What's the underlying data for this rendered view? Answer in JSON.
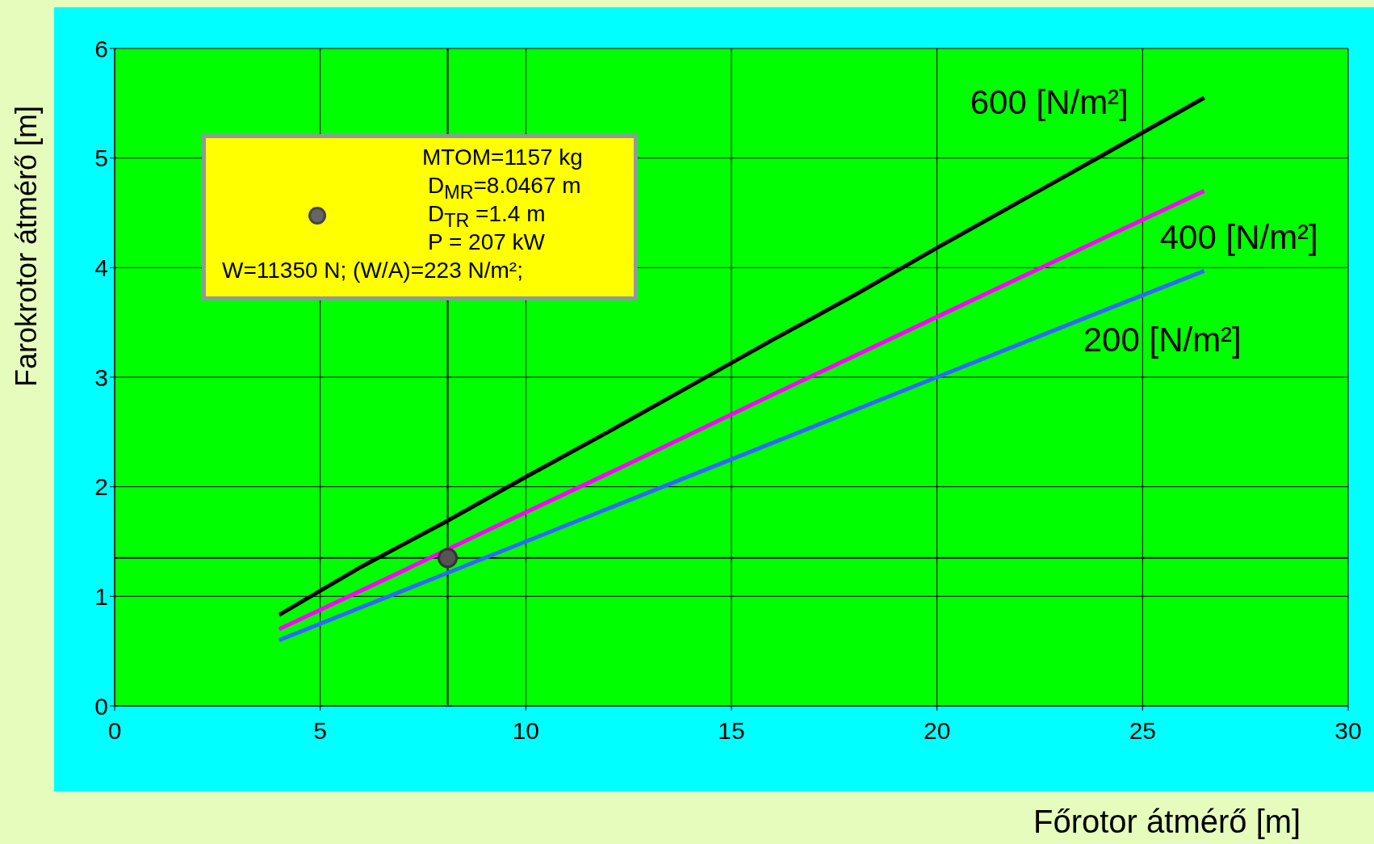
{
  "chart_data": {
    "type": "line",
    "xlabel": "Főrotor átmérő [m]",
    "ylabel": "Farokrotor átmérő [m]",
    "xlim": [
      0,
      30
    ],
    "xticks": [
      0,
      5,
      10,
      15,
      20,
      25,
      30
    ],
    "ylim": [
      0,
      6
    ],
    "yticks": [
      0,
      1,
      2,
      3,
      4,
      5,
      6
    ],
    "grid": true,
    "legend": false,
    "marker": "none",
    "series": [
      {
        "name": "600  [N/m²]",
        "color": "#000000",
        "x": [
          4,
          6,
          8,
          10,
          12,
          14,
          16,
          18,
          20,
          22,
          24,
          26.5
        ],
        "values": [
          0.83,
          1.27,
          1.67,
          2.09,
          2.5,
          2.92,
          3.34,
          3.75,
          4.18,
          4.6,
          5.02,
          5.55
        ]
      },
      {
        "name": "400   [N/m²]",
        "color": "#ff00ff",
        "x": [
          4,
          7,
          9,
          12,
          16,
          20,
          24,
          26.5
        ],
        "values": [
          0.7,
          1.23,
          1.59,
          2.12,
          2.84,
          3.55,
          4.26,
          4.7
        ]
      },
      {
        "name": "200  [N/m²]",
        "color": "#3366ff",
        "x": [
          4,
          8,
          12,
          16,
          20,
          24,
          26.5
        ],
        "values": [
          0.6,
          1.2,
          1.8,
          2.4,
          3.0,
          3.6,
          3.97
        ]
      },
      {
        "type": "scatter",
        "marker": "circle",
        "color": "#555555",
        "x": [
          8.1
        ],
        "values": [
          1.35
        ]
      }
    ],
    "ref_lines": [
      {
        "axis": "x",
        "value": 8.1,
        "color": "#000000"
      },
      {
        "axis": "y",
        "value": 1.35,
        "color": "#000000"
      }
    ],
    "annotations": [
      "MTOM=1157 kg",
      "D$_{MR}$=8.0467 m",
      "D$_{TR}$ =1.4 m",
      "P = 207 kW",
      "W=11350 N;  (W/A)=223 N/m²;"
    ]
  }
}
